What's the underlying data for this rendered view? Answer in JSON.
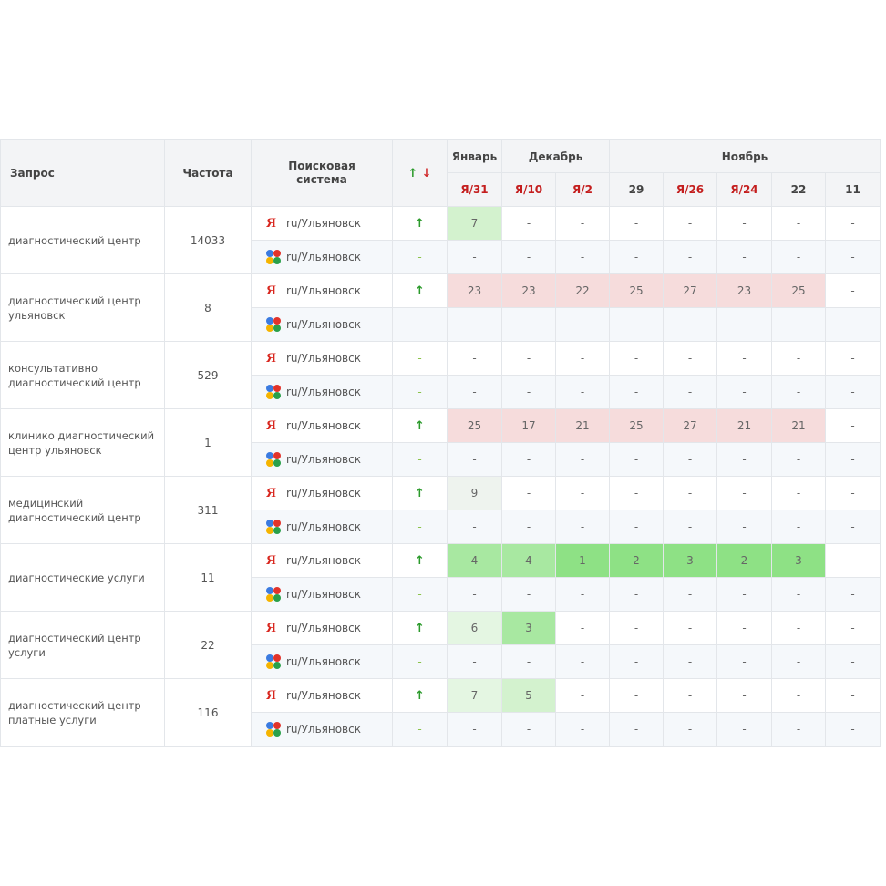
{
  "header": {
    "query": "Запрос",
    "frequency": "Частота",
    "engine": "Поисковая система",
    "sort_up": "↑",
    "sort_down": "↓",
    "months": [
      {
        "label": "Январь",
        "span": 1
      },
      {
        "label": "Декабрь",
        "span": 2
      },
      {
        "label": "Ноябрь",
        "span": 5
      }
    ],
    "dates": [
      {
        "label": "Я/31",
        "red": true
      },
      {
        "label": "Я/10",
        "red": true
      },
      {
        "label": "Я/2",
        "red": true
      },
      {
        "label": "29",
        "red": false
      },
      {
        "label": "Я/26",
        "red": true
      },
      {
        "label": "Я/24",
        "red": true
      },
      {
        "label": "22",
        "red": false
      },
      {
        "label": "11",
        "red": false
      }
    ]
  },
  "engines": {
    "yandex": {
      "icon": "yandex-logo-icon",
      "glyph": "Я",
      "label": "ru/Ульяновск",
      "color": "#d8261e"
    },
    "google": {
      "icon": "google-logo-icon",
      "label": "ru/Ульяновск"
    }
  },
  "rows": [
    {
      "query": "диагностический центр",
      "freq": "14033",
      "yandex": {
        "trend": "↑",
        "pos": [
          [
            "7",
            "g2"
          ],
          [
            "-",
            ""
          ],
          [
            "-",
            ""
          ],
          [
            "-",
            ""
          ],
          [
            "-",
            ""
          ],
          [
            "-",
            ""
          ],
          [
            "-",
            ""
          ],
          [
            "-",
            ""
          ]
        ]
      },
      "google": {
        "trend": "-",
        "pos": [
          "-",
          "-",
          "-",
          "-",
          "-",
          "-",
          "-",
          "-"
        ]
      }
    },
    {
      "query": "диагностический центр ульяновск",
      "freq": "8",
      "yandex": {
        "trend": "↑",
        "pos": [
          [
            "23",
            "bad"
          ],
          [
            "23",
            "bad"
          ],
          [
            "22",
            "bad"
          ],
          [
            "25",
            "bad"
          ],
          [
            "27",
            "bad"
          ],
          [
            "23",
            "bad"
          ],
          [
            "25",
            "bad"
          ],
          [
            "-",
            ""
          ]
        ]
      },
      "google": {
        "trend": "-",
        "pos": [
          "-",
          "-",
          "-",
          "-",
          "-",
          "-",
          "-",
          "-"
        ]
      }
    },
    {
      "query": "консультативно диагностический центр",
      "freq": "529",
      "yandex": {
        "trend": "-",
        "pos": [
          [
            "-",
            ""
          ],
          [
            "-",
            ""
          ],
          [
            "-",
            ""
          ],
          [
            "-",
            ""
          ],
          [
            "-",
            ""
          ],
          [
            "-",
            ""
          ],
          [
            "-",
            ""
          ],
          [
            "-",
            ""
          ]
        ]
      },
      "google": {
        "trend": "-",
        "pos": [
          "-",
          "-",
          "-",
          "-",
          "-",
          "-",
          "-",
          "-"
        ]
      }
    },
    {
      "query": "клинико диагностический центр ульяновск",
      "freq": "1",
      "yandex": {
        "trend": "↑",
        "pos": [
          [
            "25",
            "bad"
          ],
          [
            "17",
            "bad"
          ],
          [
            "21",
            "bad"
          ],
          [
            "25",
            "bad"
          ],
          [
            "27",
            "bad"
          ],
          [
            "21",
            "bad"
          ],
          [
            "21",
            "bad"
          ],
          [
            "-",
            ""
          ]
        ]
      },
      "google": {
        "trend": "-",
        "pos": [
          "-",
          "-",
          "-",
          "-",
          "-",
          "-",
          "-",
          "-"
        ]
      }
    },
    {
      "query": "медицинский диагностический центр",
      "freq": "311",
      "yandex": {
        "trend": "↑",
        "pos": [
          [
            "9",
            "g5"
          ],
          [
            "-",
            ""
          ],
          [
            "-",
            ""
          ],
          [
            "-",
            ""
          ],
          [
            "-",
            ""
          ],
          [
            "-",
            ""
          ],
          [
            "-",
            ""
          ],
          [
            "-",
            ""
          ]
        ]
      },
      "google": {
        "trend": "-",
        "pos": [
          "-",
          "-",
          "-",
          "-",
          "-",
          "-",
          "-",
          "-"
        ]
      }
    },
    {
      "query": "диагностические услуги",
      "freq": "11",
      "yandex": {
        "trend": "↑",
        "pos": [
          [
            "4",
            "g3"
          ],
          [
            "4",
            "g3"
          ],
          [
            "1",
            "g4"
          ],
          [
            "2",
            "g4"
          ],
          [
            "3",
            "g4"
          ],
          [
            "2",
            "g4"
          ],
          [
            "3",
            "g4"
          ],
          [
            "-",
            ""
          ]
        ]
      },
      "google": {
        "trend": "-",
        "pos": [
          "-",
          "-",
          "-",
          "-",
          "-",
          "-",
          "-",
          "-"
        ]
      }
    },
    {
      "query": "диагностический центр услуги",
      "freq": "22",
      "yandex": {
        "trend": "↑",
        "pos": [
          [
            "6",
            "g1"
          ],
          [
            "3",
            "g3"
          ],
          [
            "-",
            ""
          ],
          [
            "-",
            ""
          ],
          [
            "-",
            ""
          ],
          [
            "-",
            ""
          ],
          [
            "-",
            ""
          ],
          [
            "-",
            ""
          ]
        ]
      },
      "google": {
        "trend": "-",
        "pos": [
          "-",
          "-",
          "-",
          "-",
          "-",
          "-",
          "-",
          "-"
        ]
      }
    },
    {
      "query": "диагностический центр платные услуги",
      "freq": "116",
      "yandex": {
        "trend": "↑",
        "pos": [
          [
            "7",
            "g1"
          ],
          [
            "5",
            "g2"
          ],
          [
            "-",
            ""
          ],
          [
            "-",
            ""
          ],
          [
            "-",
            ""
          ],
          [
            "-",
            ""
          ],
          [
            "-",
            ""
          ],
          [
            "-",
            ""
          ]
        ]
      },
      "google": {
        "trend": "-",
        "pos": [
          "-",
          "-",
          "-",
          "-",
          "-",
          "-",
          "-",
          "-"
        ]
      }
    }
  ]
}
